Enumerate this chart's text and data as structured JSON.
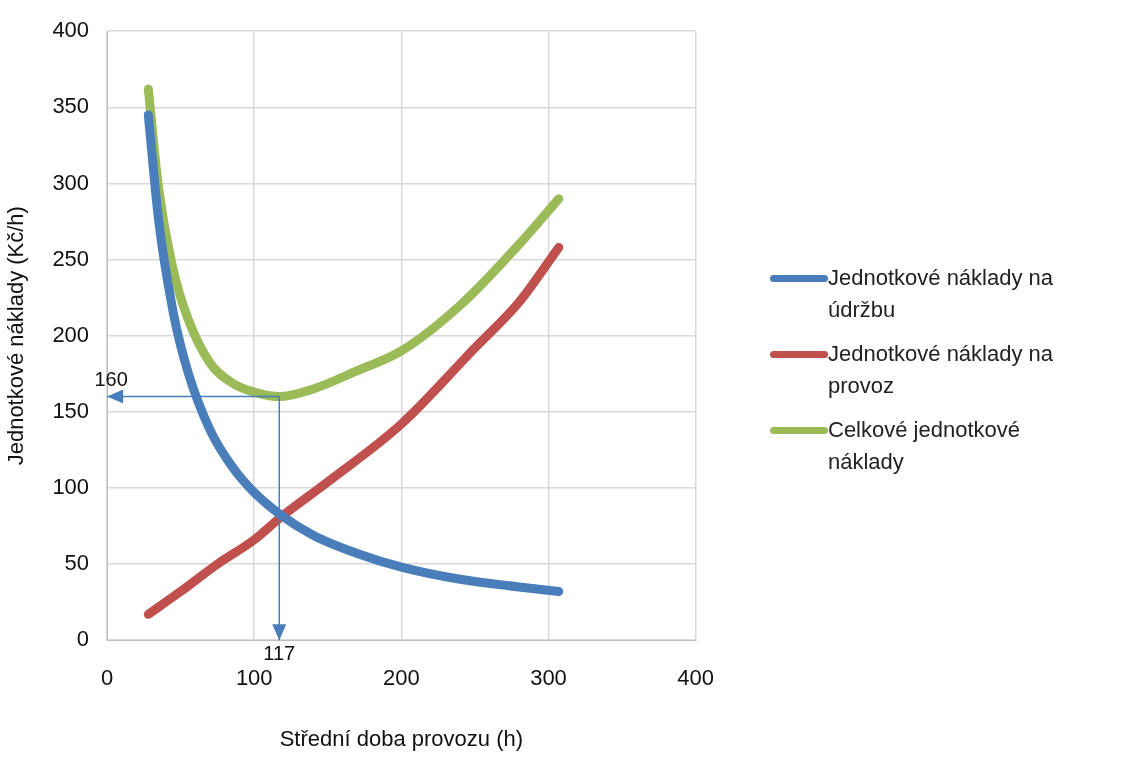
{
  "chart_data": {
    "type": "line",
    "xlabel": "Střední doba provozu (h)",
    "ylabel": "Jednotkové náklady (Kč/h)",
    "xlim": [
      0,
      400
    ],
    "xticks": [
      0,
      100,
      200,
      300,
      400
    ],
    "ylim": [
      0,
      400
    ],
    "yticks": [
      0,
      50,
      100,
      150,
      200,
      250,
      300,
      350,
      400
    ],
    "grid": true,
    "legend": "right",
    "marker": "none",
    "line_style": "solid",
    "series": [
      {
        "name": "Jednotkové náklady na údržbu",
        "color": "#4a7ebb",
        "x": [
          28,
          35,
          45,
          55,
          70,
          85,
          100,
          117,
          140,
          170,
          200,
          240,
          280,
          307
        ],
        "values": [
          345,
          276,
          215,
          176,
          138,
          114,
          97,
          83,
          69,
          57,
          48,
          40,
          35,
          32
        ]
      },
      {
        "name": "Jednotkové náklady na provoz",
        "color": "#c0504d",
        "x": [
          28,
          50,
          75,
          100,
          117,
          150,
          200,
          250,
          280,
          307
        ],
        "values": [
          17,
          32,
          50,
          66,
          80,
          104,
          142,
          192,
          222,
          258
        ]
      },
      {
        "name": "Celkové jednotkové náklady",
        "color": "#9bbb59",
        "x": [
          28,
          35,
          45,
          55,
          70,
          85,
          100,
          117,
          140,
          170,
          200,
          240,
          280,
          307
        ],
        "values": [
          362,
          297,
          243,
          211,
          182,
          169,
          163,
          160,
          165,
          177,
          190,
          220,
          260,
          290
        ]
      }
    ],
    "annotations": [
      {
        "text": "160",
        "x": 117,
        "y": 160
      },
      {
        "text": "117",
        "x": 117,
        "y": 160
      }
    ]
  }
}
